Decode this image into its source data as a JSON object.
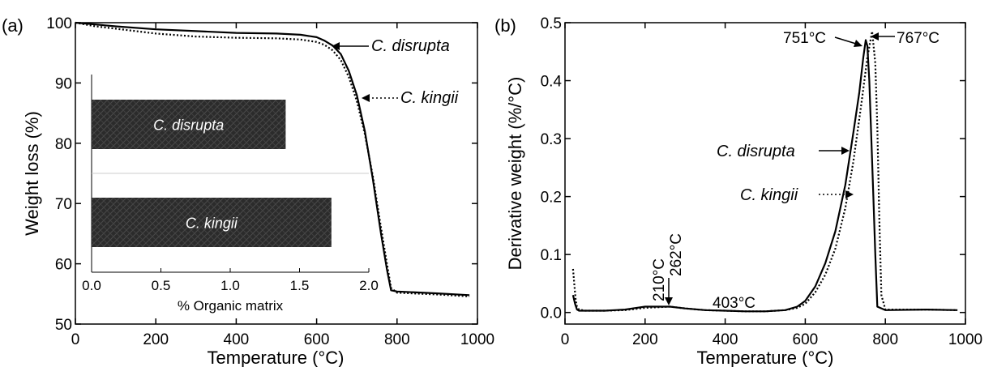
{
  "chart_data": [
    {
      "panel_label": "(a)",
      "type": "line",
      "xlabel": "Temperature (°C)",
      "ylabel": "Weight loss (%)",
      "xlim": [
        0,
        1000
      ],
      "ylim": [
        50,
        100
      ],
      "xticks": [
        "0",
        "200",
        "400",
        "600",
        "800",
        "1000"
      ],
      "yticks": [
        "50",
        "60",
        "70",
        "80",
        "90",
        "100"
      ],
      "grid": false,
      "series": [
        {
          "name": "C. disrupta",
          "style": "solid",
          "x": [
            0,
            50,
            100,
            200,
            300,
            400,
            500,
            560,
            600,
            620,
            640,
            660,
            680,
            700,
            720,
            740,
            760,
            775,
            785,
            800,
            900,
            980
          ],
          "y": [
            100,
            99.7,
            99.4,
            98.9,
            98.6,
            98.3,
            98.2,
            98.0,
            97.6,
            97.0,
            96.2,
            94.8,
            92.0,
            88.0,
            82.0,
            74.0,
            65.0,
            59.0,
            55.6,
            55.4,
            55.1,
            54.8
          ]
        },
        {
          "name": "C. kingii",
          "style": "dotted",
          "x": [
            0,
            50,
            100,
            200,
            300,
            400,
            500,
            560,
            600,
            620,
            640,
            660,
            680,
            700,
            720,
            740,
            760,
            775,
            785,
            800,
            900,
            980
          ],
          "y": [
            100,
            99.4,
            99.0,
            98.2,
            97.7,
            97.5,
            97.4,
            97.2,
            96.8,
            96.3,
            95.4,
            93.8,
            91.0,
            87.0,
            81.5,
            74.5,
            66.0,
            60.0,
            56.0,
            55.2,
            54.9,
            54.6
          ]
        }
      ],
      "annotations": [
        "C. disrupta",
        "C. kingii"
      ],
      "inset": {
        "type": "bar",
        "orientation": "horizontal",
        "xlabel": "% Organic matrix",
        "xlim": [
          0,
          2.0
        ],
        "xticks": [
          "0.0",
          "0.5",
          "1.0",
          "1.5",
          "2.0"
        ],
        "categories": [
          "C. disrupta",
          "C. kingii"
        ],
        "values": [
          1.4,
          1.73
        ]
      }
    },
    {
      "panel_label": "(b)",
      "type": "line",
      "xlabel": "Temperature (°C)",
      "ylabel": "Derivative weight (%/°C)",
      "xlim": [
        0,
        1000
      ],
      "ylim": [
        -0.02,
        0.5
      ],
      "xticks": [
        "0",
        "200",
        "400",
        "600",
        "800",
        "1000"
      ],
      "yticks": [
        "0.0",
        "0.1",
        "0.2",
        "0.3",
        "0.4",
        "0.5"
      ],
      "grid": false,
      "series": [
        {
          "name": "C. disrupta",
          "style": "solid",
          "x": [
            20,
            25,
            30,
            35,
            50,
            100,
            150,
            200,
            262,
            300,
            350,
            400,
            450,
            500,
            550,
            580,
            600,
            625,
            650,
            675,
            700,
            720,
            735,
            745,
            751,
            755,
            760,
            765,
            770,
            775,
            780,
            800,
            900,
            980
          ],
          "y": [
            0.03,
            0.015,
            0.005,
            0.003,
            0.003,
            0.003,
            0.005,
            0.01,
            0.01,
            0.007,
            0.004,
            0.003,
            0.002,
            0.002,
            0.004,
            0.01,
            0.02,
            0.045,
            0.085,
            0.14,
            0.22,
            0.31,
            0.38,
            0.44,
            0.47,
            0.46,
            0.4,
            0.3,
            0.2,
            0.1,
            0.01,
            0.004,
            0.005,
            0.004
          ]
        },
        {
          "name": "C. kingii",
          "style": "dotted",
          "x": [
            20,
            23,
            27,
            30,
            35,
            50,
            100,
            150,
            200,
            262,
            300,
            350,
            400,
            450,
            500,
            550,
            580,
            600,
            625,
            650,
            675,
            700,
            720,
            740,
            755,
            767,
            775,
            780,
            785,
            790,
            800,
            900,
            980
          ],
          "y": [
            0.075,
            0.05,
            0.02,
            0.01,
            0.005,
            0.003,
            0.003,
            0.004,
            0.008,
            0.01,
            0.007,
            0.004,
            0.003,
            0.002,
            0.002,
            0.004,
            0.008,
            0.015,
            0.035,
            0.065,
            0.11,
            0.18,
            0.26,
            0.36,
            0.44,
            0.485,
            0.43,
            0.32,
            0.16,
            0.03,
            0.005,
            0.005,
            0.004
          ]
        }
      ],
      "annotations": [
        "751°C",
        "767°C",
        "210°C",
        "262°C",
        "403°C",
        "C. disrupta",
        "C. kingii"
      ]
    }
  ]
}
